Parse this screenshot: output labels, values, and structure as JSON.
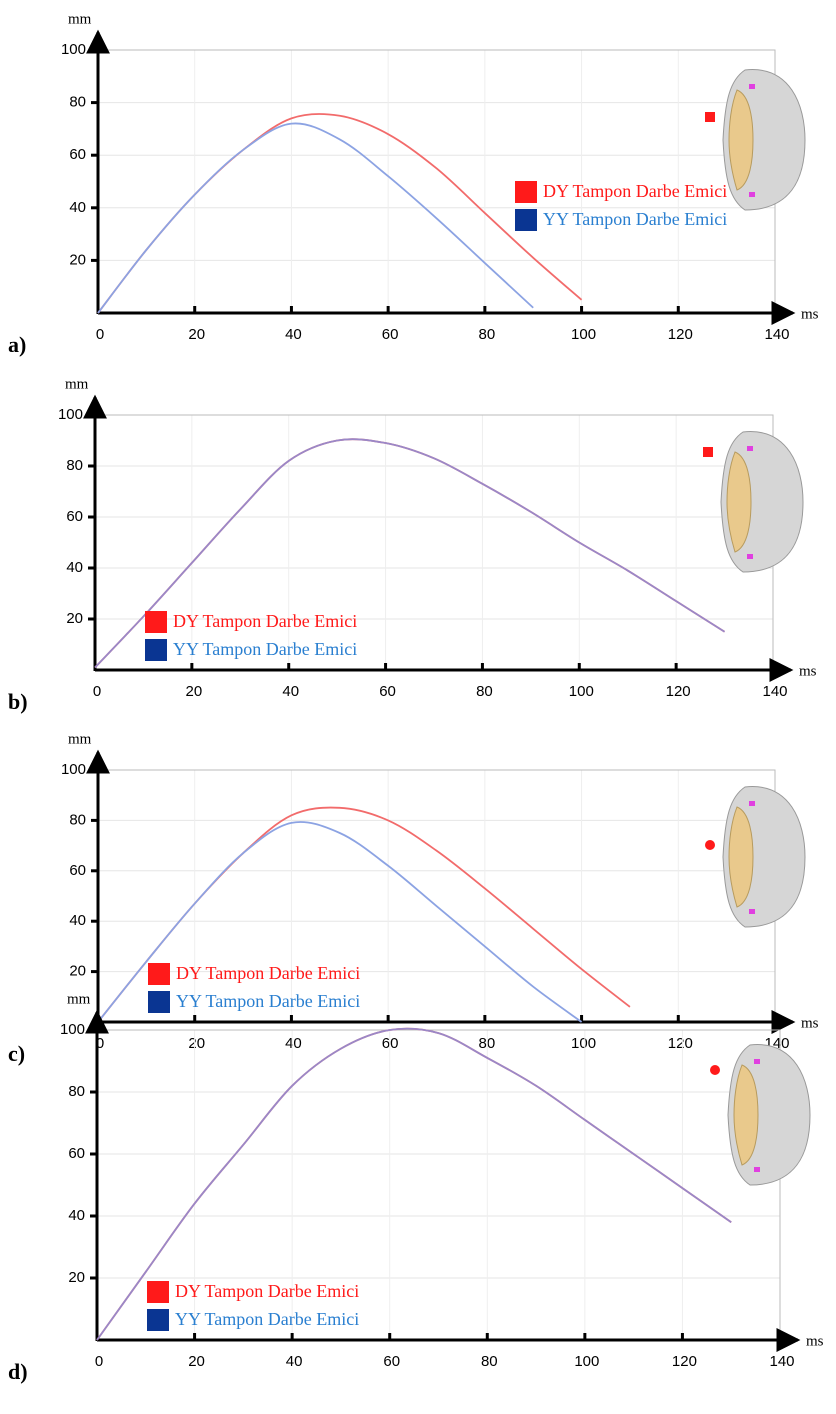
{
  "chart_data": [
    {
      "type": "line",
      "panel_label": "a)",
      "y_label": "mm",
      "x_label": "ms",
      "grid": true,
      "legend": "right",
      "x": [
        0,
        10,
        20,
        30,
        40,
        50,
        60,
        70,
        80,
        90,
        100
      ],
      "xlim": [
        0,
        140
      ],
      "ylim": [
        0,
        100
      ],
      "xticks": [
        0,
        20,
        40,
        60,
        80,
        100,
        120,
        140
      ],
      "yticks": [
        20,
        40,
        60,
        80,
        100
      ],
      "series": [
        {
          "name": "DY Tampon Darbe Emici",
          "color": "#f26b6b",
          "values": [
            0,
            24,
            45,
            62,
            74,
            75,
            68,
            55,
            38,
            21,
            5
          ]
        },
        {
          "name": "YY Tampon Darbe Emici",
          "color": "#8ca3e3",
          "values": [
            0,
            24,
            45,
            62,
            72,
            66,
            52,
            36,
            19,
            2,
            null
          ]
        }
      ]
    },
    {
      "type": "line",
      "panel_label": "b)",
      "y_label": "mm",
      "x_label": "ms",
      "grid": true,
      "legend": "lower left",
      "x": [
        0,
        10,
        20,
        30,
        40,
        50,
        60,
        70,
        80,
        90,
        100,
        110,
        120,
        130
      ],
      "xlim": [
        0,
        140
      ],
      "ylim": [
        0,
        100
      ],
      "xticks": [
        0,
        20,
        40,
        60,
        80,
        100,
        120,
        140
      ],
      "yticks": [
        20,
        40,
        60,
        80,
        100
      ],
      "series": [
        {
          "name": "DY Tampon Darbe Emici",
          "color": "#f26b6b",
          "values": [
            1,
            21,
            42,
            63,
            82,
            90,
            89,
            83,
            73,
            62,
            50,
            39,
            27,
            15
          ]
        },
        {
          "name": "YY Tampon Darbe Emici",
          "color": "#9a88c8",
          "values": [
            1,
            21,
            42,
            63,
            82,
            90,
            89,
            83,
            73,
            62,
            50,
            39,
            27,
            15
          ]
        }
      ]
    },
    {
      "type": "line",
      "panel_label": "c)",
      "y_label": "mm",
      "x_label": "ms",
      "grid": true,
      "legend": "lower left",
      "x": [
        0,
        10,
        20,
        30,
        40,
        50,
        60,
        70,
        80,
        90,
        100,
        110
      ],
      "xlim": [
        0,
        140
      ],
      "ylim": [
        0,
        100
      ],
      "xticks": [
        0,
        20,
        40,
        60,
        80,
        100,
        120,
        140
      ],
      "yticks": [
        20,
        40,
        60,
        80,
        100
      ],
      "series": [
        {
          "name": "DY Tampon Darbe Emici",
          "color": "#f26b6b",
          "values": [
            0,
            24,
            47,
            67,
            82,
            85,
            80,
            68,
            53,
            37,
            21,
            6
          ]
        },
        {
          "name": "YY Tampon Darbe Emici",
          "color": "#8ca3e3",
          "values": [
            0,
            24,
            47,
            67,
            79,
            75,
            62,
            46,
            30,
            14,
            0,
            null
          ]
        }
      ]
    },
    {
      "type": "line",
      "panel_label": "d)",
      "y_label": "mm",
      "x_label": "ms",
      "grid": true,
      "legend": "lower left",
      "x": [
        0,
        10,
        20,
        30,
        40,
        50,
        60,
        70,
        80,
        90,
        100,
        110,
        120,
        130
      ],
      "xlim": [
        0,
        140
      ],
      "ylim": [
        0,
        100
      ],
      "xticks": [
        0,
        20,
        40,
        60,
        80,
        100,
        120,
        140
      ],
      "yticks": [
        20,
        40,
        60,
        80,
        100
      ],
      "series": [
        {
          "name": "DY Tampon Darbe Emici",
          "color": "#f26b6b",
          "values": [
            0,
            22,
            44,
            63,
            82,
            94,
            100,
            99,
            91,
            82,
            71,
            60,
            49,
            38
          ]
        },
        {
          "name": "YY Tampon Darbe Emici",
          "color": "#9a88c8",
          "values": [
            0,
            22,
            44,
            63,
            82,
            94,
            100,
            99,
            91,
            82,
            71,
            60,
            49,
            38
          ]
        }
      ]
    }
  ]
}
